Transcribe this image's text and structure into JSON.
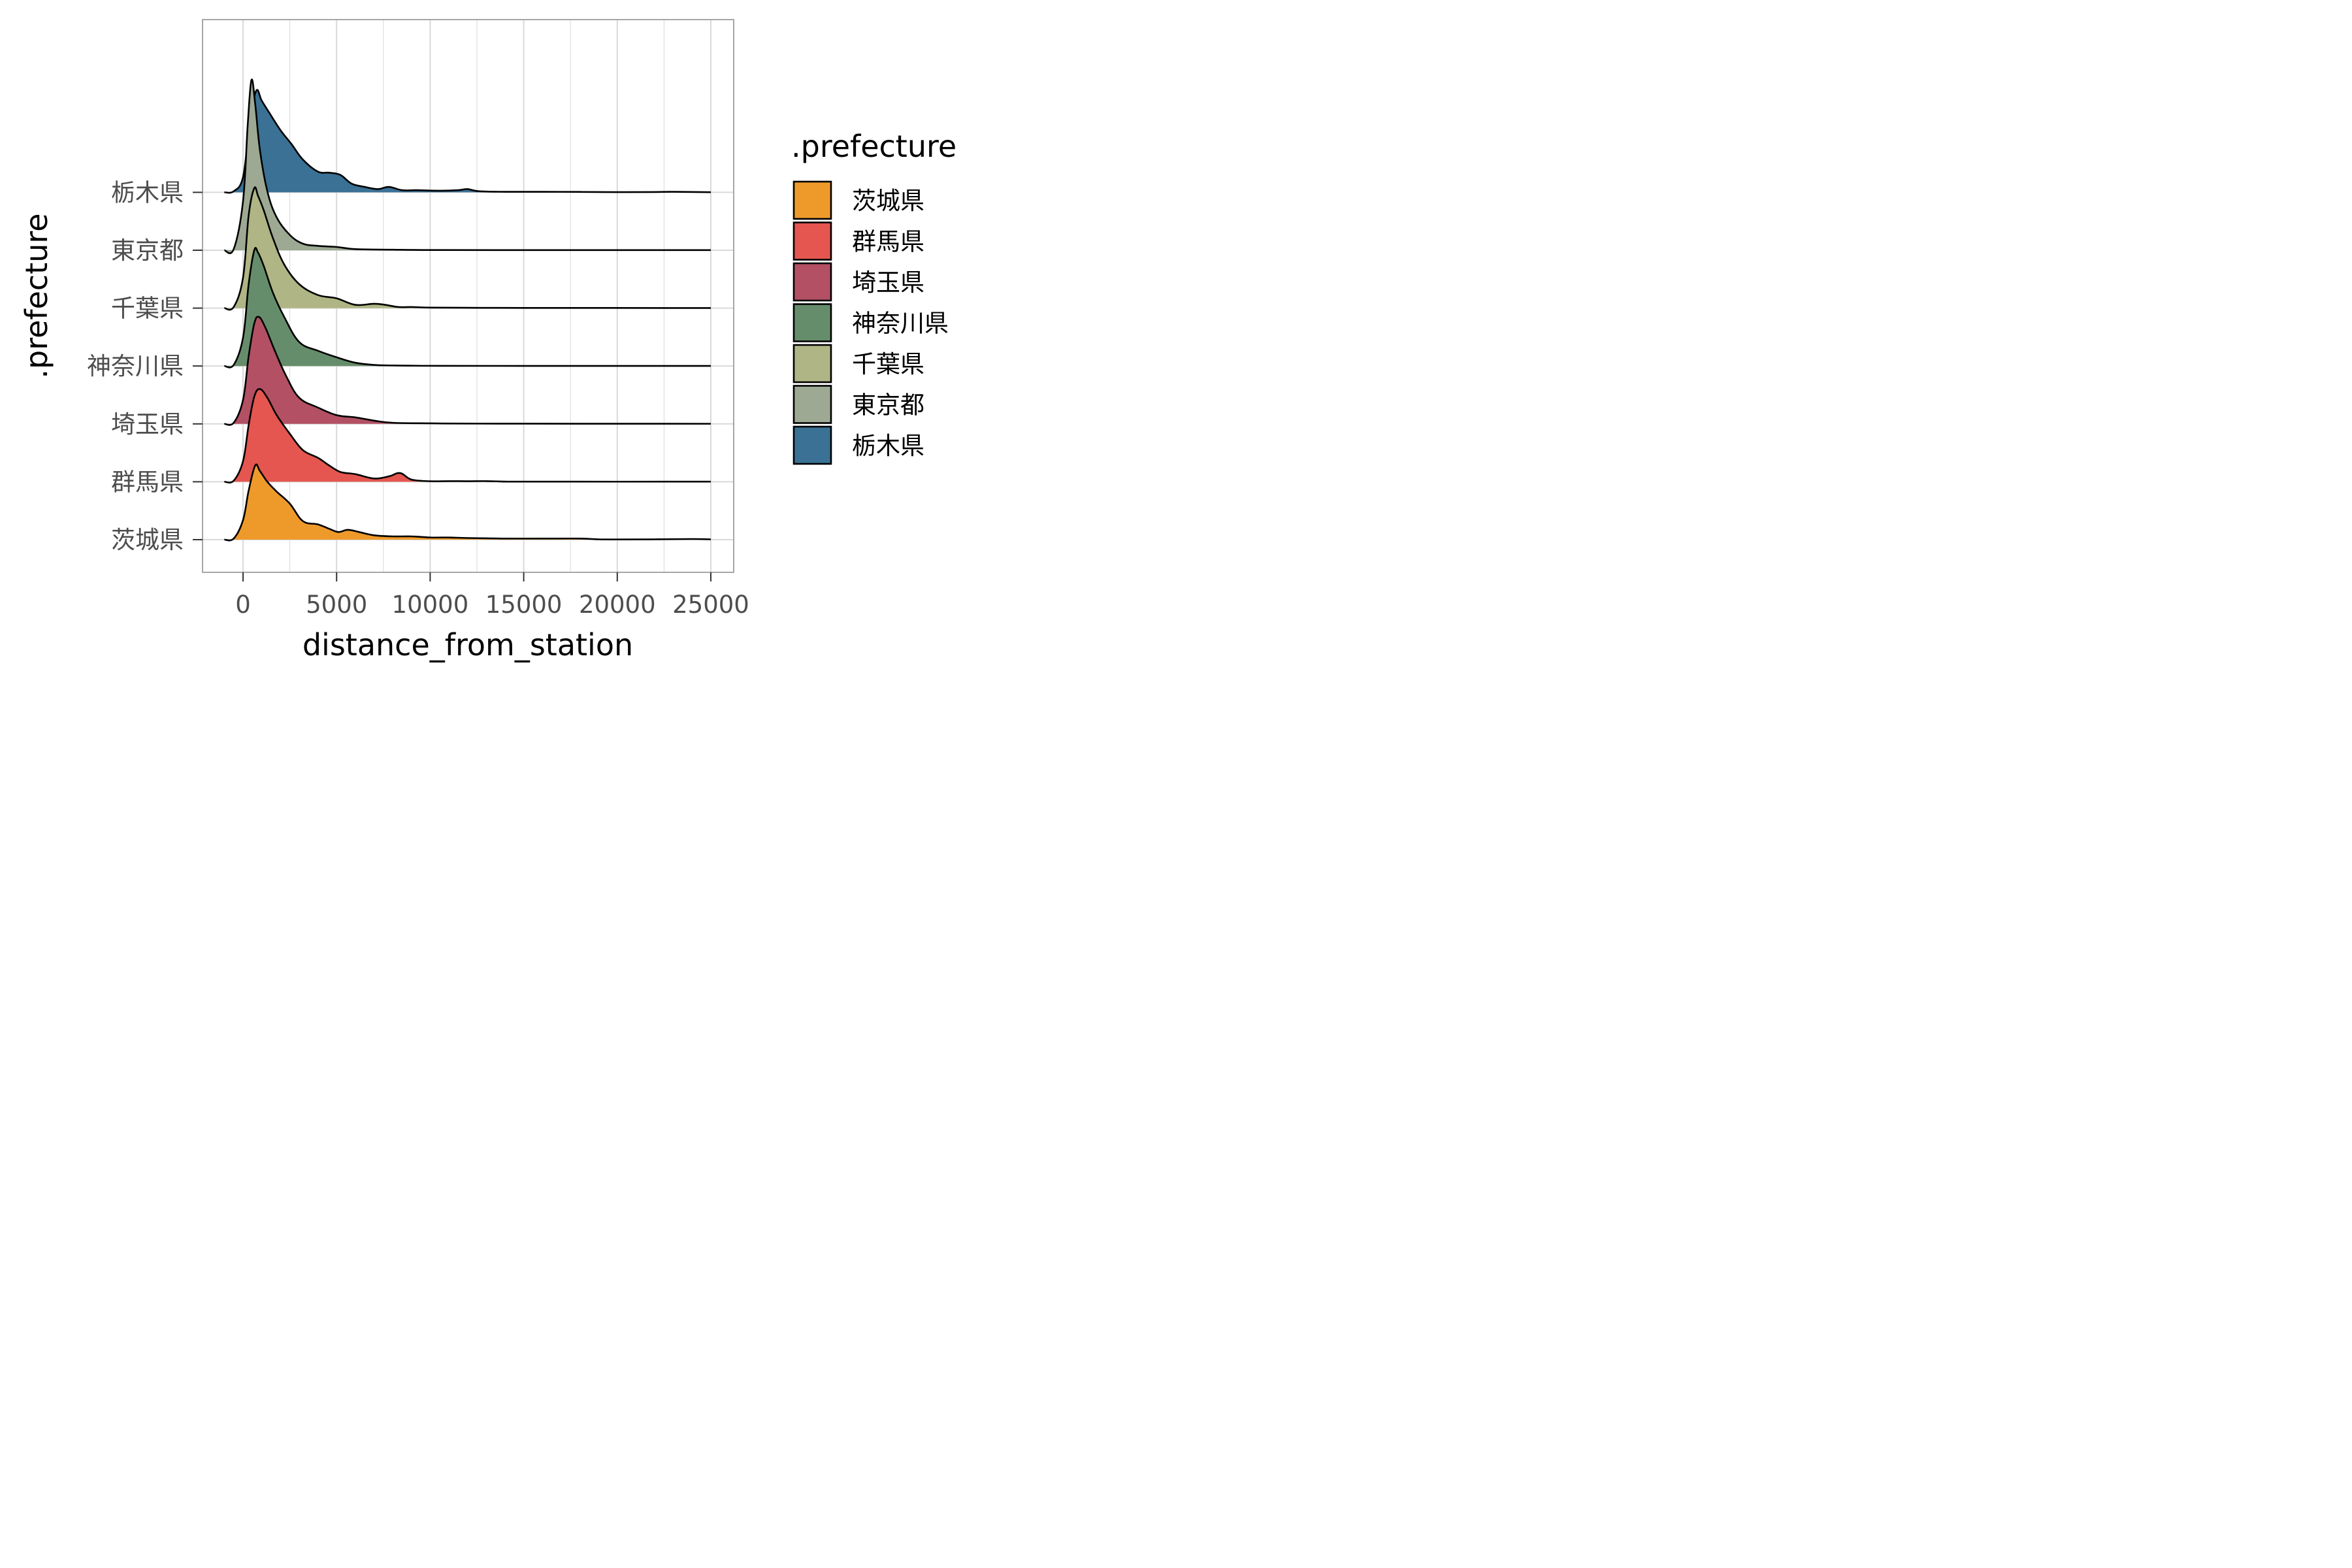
{
  "chart_data": {
    "type": "ridgeline",
    "xlabel": "distance_from_station",
    "ylabel": ".prefecture",
    "xlim": [
      -2200,
      26000
    ],
    "x_ticks": [
      0,
      5000,
      10000,
      15000,
      20000,
      25000
    ],
    "x_tick_labels": [
      "0",
      "5000",
      "10000",
      "15000",
      "20000",
      "25000"
    ],
    "grid": true,
    "legend": {
      "title": ".prefecture",
      "placement": "right",
      "entries": [
        "茨城県",
        "群馬県",
        "埼玉県",
        "神奈川県",
        "千葉県",
        "東京都",
        "栃木県"
      ]
    },
    "categories": [
      "茨城県",
      "群馬県",
      "埼玉県",
      "神奈川県",
      "千葉県",
      "東京都",
      "栃木県"
    ],
    "series": [
      {
        "name": "茨城県",
        "color": "#EE9A2B",
        "points": [
          [
            -1000,
            0
          ],
          [
            -500,
            0.01
          ],
          [
            0,
            0.18
          ],
          [
            300,
            0.45
          ],
          [
            650,
            0.68
          ],
          [
            900,
            0.63
          ],
          [
            1300,
            0.53
          ],
          [
            1800,
            0.44
          ],
          [
            2500,
            0.33
          ],
          [
            3200,
            0.17
          ],
          [
            4000,
            0.14
          ],
          [
            4600,
            0.1
          ],
          [
            5100,
            0.07
          ],
          [
            5600,
            0.09
          ],
          [
            6200,
            0.07
          ],
          [
            7000,
            0.04
          ],
          [
            8000,
            0.03
          ],
          [
            9000,
            0.03
          ],
          [
            10000,
            0.02
          ],
          [
            11000,
            0.02
          ],
          [
            12000,
            0.015
          ],
          [
            14000,
            0.01
          ],
          [
            16000,
            0.01
          ],
          [
            18000,
            0.01
          ],
          [
            19000,
            0.003
          ],
          [
            20000,
            0.002
          ],
          [
            22000,
            0.003
          ],
          [
            24000,
            0.006
          ],
          [
            25000,
            0.003
          ]
        ]
      },
      {
        "name": "群馬県",
        "color": "#E4564F",
        "points": [
          [
            -1000,
            0
          ],
          [
            -500,
            0.01
          ],
          [
            0,
            0.19
          ],
          [
            300,
            0.52
          ],
          [
            600,
            0.78
          ],
          [
            900,
            0.85
          ],
          [
            1300,
            0.77
          ],
          [
            1800,
            0.61
          ],
          [
            2500,
            0.44
          ],
          [
            3200,
            0.29
          ],
          [
            4000,
            0.22
          ],
          [
            4600,
            0.15
          ],
          [
            5200,
            0.09
          ],
          [
            6000,
            0.07
          ],
          [
            7000,
            0.03
          ],
          [
            7800,
            0.05
          ],
          [
            8400,
            0.08
          ],
          [
            9000,
            0.02
          ],
          [
            10000,
            0.005
          ],
          [
            11000,
            0.006
          ],
          [
            12000,
            0.005
          ],
          [
            13000,
            0.006
          ],
          [
            14000,
            0.002
          ],
          [
            15000,
            0.001
          ],
          [
            25000,
            0.001
          ]
        ]
      },
      {
        "name": "埼玉県",
        "color": "#B35064",
        "points": [
          [
            -1000,
            0
          ],
          [
            -500,
            0.01
          ],
          [
            0,
            0.22
          ],
          [
            300,
            0.62
          ],
          [
            600,
            0.92
          ],
          [
            850,
            0.98
          ],
          [
            1200,
            0.88
          ],
          [
            1700,
            0.67
          ],
          [
            2300,
            0.44
          ],
          [
            3000,
            0.24
          ],
          [
            4000,
            0.15
          ],
          [
            5000,
            0.08
          ],
          [
            6000,
            0.06
          ],
          [
            7000,
            0.03
          ],
          [
            8000,
            0.01
          ],
          [
            10000,
            0.005
          ],
          [
            12000,
            0.003
          ],
          [
            15000,
            0.002
          ],
          [
            25000,
            0.001
          ]
        ]
      },
      {
        "name": "神奈川県",
        "color": "#668D6B",
        "points": [
          [
            -1000,
            0
          ],
          [
            -500,
            0.01
          ],
          [
            0,
            0.26
          ],
          [
            300,
            0.75
          ],
          [
            600,
            1.06
          ],
          [
            800,
            1.04
          ],
          [
            1100,
            0.92
          ],
          [
            1600,
            0.67
          ],
          [
            2200,
            0.45
          ],
          [
            3000,
            0.22
          ],
          [
            4000,
            0.14
          ],
          [
            5000,
            0.08
          ],
          [
            6000,
            0.03
          ],
          [
            7000,
            0.01
          ],
          [
            8000,
            0.005
          ],
          [
            10000,
            0.002
          ],
          [
            15000,
            0.001
          ],
          [
            25000,
            0.001
          ]
        ]
      },
      {
        "name": "千葉県",
        "color": "#AFB584",
        "points": [
          [
            -1000,
            0
          ],
          [
            -500,
            0.01
          ],
          [
            0,
            0.28
          ],
          [
            300,
            0.85
          ],
          [
            600,
            1.1
          ],
          [
            800,
            1.03
          ],
          [
            1100,
            0.9
          ],
          [
            1600,
            0.64
          ],
          [
            2200,
            0.4
          ],
          [
            3000,
            0.22
          ],
          [
            4000,
            0.12
          ],
          [
            5000,
            0.09
          ],
          [
            6000,
            0.03
          ],
          [
            7000,
            0.04
          ],
          [
            7600,
            0.03
          ],
          [
            8300,
            0.01
          ],
          [
            9000,
            0.01
          ],
          [
            10000,
            0.005
          ],
          [
            12000,
            0.003
          ],
          [
            15000,
            0.002
          ],
          [
            25000,
            0.001
          ]
        ]
      },
      {
        "name": "東京都",
        "color": "#9DA993",
        "points": [
          [
            -1000,
            0
          ],
          [
            -500,
            0.01
          ],
          [
            0,
            0.45
          ],
          [
            250,
            1.15
          ],
          [
            450,
            1.56
          ],
          [
            650,
            1.34
          ],
          [
            900,
            0.92
          ],
          [
            1300,
            0.54
          ],
          [
            1800,
            0.3
          ],
          [
            2500,
            0.14
          ],
          [
            3200,
            0.06
          ],
          [
            4000,
            0.04
          ],
          [
            5000,
            0.03
          ],
          [
            6000,
            0.01
          ],
          [
            8000,
            0.005
          ],
          [
            10000,
            0.002
          ],
          [
            15000,
            0.001
          ],
          [
            25000,
            0.001
          ]
        ]
      },
      {
        "name": "栃木県",
        "color": "#3A7194",
        "points": [
          [
            -1000,
            0
          ],
          [
            -500,
            0.01
          ],
          [
            0,
            0.14
          ],
          [
            350,
            0.62
          ],
          [
            700,
            0.93
          ],
          [
            1000,
            0.84
          ],
          [
            1400,
            0.73
          ],
          [
            2000,
            0.57
          ],
          [
            2600,
            0.44
          ],
          [
            3200,
            0.3
          ],
          [
            4000,
            0.19
          ],
          [
            4600,
            0.18
          ],
          [
            5200,
            0.16
          ],
          [
            5800,
            0.08
          ],
          [
            6500,
            0.05
          ],
          [
            7200,
            0.03
          ],
          [
            7800,
            0.05
          ],
          [
            8500,
            0.02
          ],
          [
            9300,
            0.02
          ],
          [
            10500,
            0.015
          ],
          [
            11500,
            0.02
          ],
          [
            12000,
            0.03
          ],
          [
            12600,
            0.01
          ],
          [
            14000,
            0.005
          ],
          [
            16000,
            0.005
          ],
          [
            18000,
            0.004
          ],
          [
            20000,
            0.002
          ],
          [
            22000,
            0.003
          ],
          [
            23000,
            0.005
          ],
          [
            25000,
            0.001
          ]
        ]
      }
    ]
  }
}
